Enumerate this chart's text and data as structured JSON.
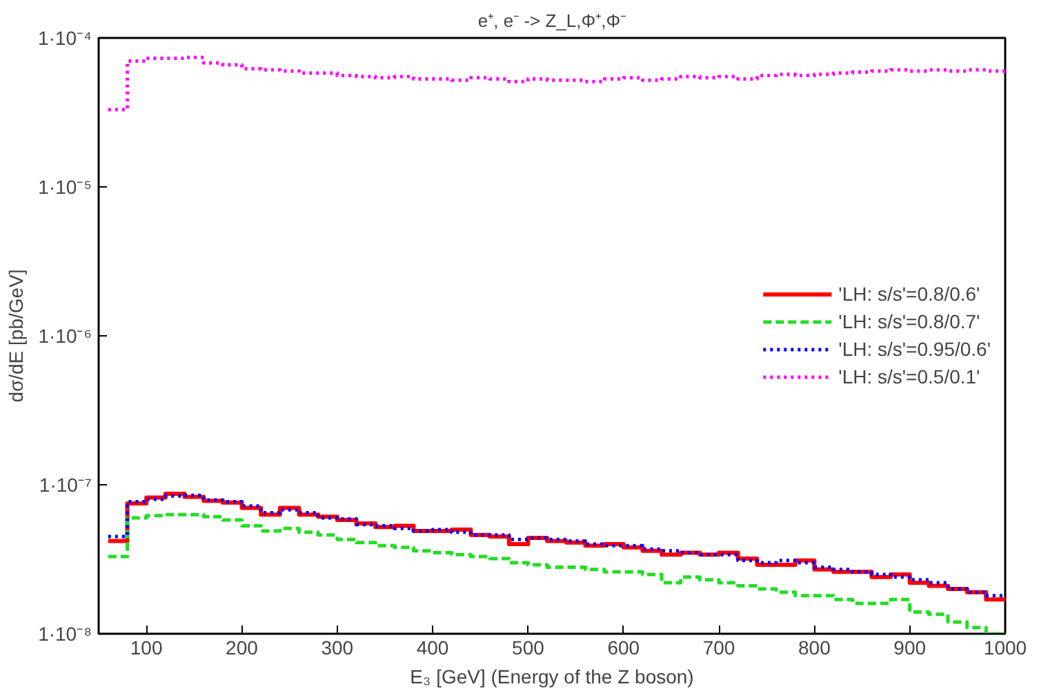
{
  "chart_data": {
    "type": "histogram",
    "title": "e⁺, e⁻ -> Z_L,Φ⁺,Φ⁻",
    "xlabel": "E₃ [GeV] (Energy of the Z boson)",
    "ylabel": "dσ/dE [pb/GeV]",
    "bins": [
      60,
      80,
      100,
      120,
      140,
      160,
      180,
      200,
      220,
      240,
      260,
      280,
      300,
      320,
      340,
      360,
      380,
      400,
      420,
      440,
      460,
      480,
      500,
      520,
      540,
      560,
      580,
      600,
      620,
      640,
      660,
      680,
      700,
      720,
      740,
      760,
      780,
      800,
      820,
      840,
      860,
      880,
      900,
      920,
      940,
      960,
      980,
      1000
    ],
    "series": [
      {
        "name": "'LH: s/s'=0.8/0.6'",
        "color": "#ff0000",
        "line_style": "solid",
        "values": [
          4.2e-08,
          7.5e-08,
          8.2e-08,
          8.7e-08,
          8.3e-08,
          7.8e-08,
          7.6e-08,
          7e-08,
          6.3e-08,
          7e-08,
          6.3e-08,
          6.1e-08,
          5.8e-08,
          5.5e-08,
          5.2e-08,
          5.3e-08,
          4.9e-08,
          4.9e-08,
          5e-08,
          4.6e-08,
          4.5e-08,
          4e-08,
          4.4e-08,
          4.2e-08,
          4.1e-08,
          3.9e-08,
          4e-08,
          3.8e-08,
          3.6e-08,
          3.4e-08,
          3.5e-08,
          3.4e-08,
          3.5e-08,
          3.2e-08,
          2.9e-08,
          2.9e-08,
          3.1e-08,
          2.7e-08,
          2.6e-08,
          2.6e-08,
          2.4e-08,
          2.5e-08,
          2.2e-08,
          2.1e-08,
          2e-08,
          1.9e-08,
          1.7e-08
        ]
      },
      {
        "name": "'LH: s/s'=0.8/0.7'",
        "color": "#22dd22",
        "line_style": "dashed",
        "values": [
          3.3e-08,
          6e-08,
          6.2e-08,
          6.3e-08,
          6.3e-08,
          6.1e-08,
          5.8e-08,
          5.3e-08,
          4.9e-08,
          5.1e-08,
          4.8e-08,
          4.6e-08,
          4.3e-08,
          4.1e-08,
          3.9e-08,
          3.8e-08,
          3.6e-08,
          3.5e-08,
          3.4e-08,
          3.3e-08,
          3.2e-08,
          3e-08,
          2.9e-08,
          2.8e-08,
          2.8e-08,
          2.7e-08,
          2.6e-08,
          2.6e-08,
          2.5e-08,
          2.2e-08,
          2.4e-08,
          2.3e-08,
          2.2e-08,
          2.1e-08,
          2e-08,
          1.9e-08,
          1.8e-08,
          1.8e-08,
          1.7e-08,
          1.6e-08,
          1.6e-08,
          1.7e-08,
          1.4e-08,
          1.35e-08,
          1.2e-08,
          1.1e-08,
          1e-08
        ]
      },
      {
        "name": "'LH: s/s'=0.95/0.6'",
        "color": "#0000ff",
        "line_style": "dotted",
        "values": [
          4.5e-08,
          7.7e-08,
          8e-08,
          8.4e-08,
          8.5e-08,
          7.9e-08,
          7.7e-08,
          7.2e-08,
          6.5e-08,
          6.8e-08,
          6.5e-08,
          6e-08,
          5.9e-08,
          5.4e-08,
          5.3e-08,
          5.1e-08,
          4.9e-08,
          5e-08,
          4.8e-08,
          4.6e-08,
          4.6e-08,
          4.3e-08,
          4.4e-08,
          4.3e-08,
          4.2e-08,
          4e-08,
          3.9e-08,
          3.9e-08,
          3.7e-08,
          3.6e-08,
          3.5e-08,
          3.4e-08,
          3.4e-08,
          3.1e-08,
          3e-08,
          3.1e-08,
          3e-08,
          2.8e-08,
          2.7e-08,
          2.6e-08,
          2.5e-08,
          2.4e-08,
          2.3e-08,
          2.2e-08,
          2e-08,
          1.9e-08,
          1.8e-08
        ]
      },
      {
        "name": "'LH: s/s'=0.5/0.1'",
        "color": "#ff00ff",
        "line_style": "dotted",
        "values": [
          3.3e-05,
          7e-05,
          7.3e-05,
          7.3e-05,
          7.4e-05,
          6.8e-05,
          6.6e-05,
          6.2e-05,
          6.1e-05,
          6e-05,
          5.8e-05,
          5.8e-05,
          5.6e-05,
          5.5e-05,
          5.4e-05,
          5.5e-05,
          5.3e-05,
          5.3e-05,
          5.2e-05,
          5.4e-05,
          5.3e-05,
          5.1e-05,
          5.3e-05,
          5.2e-05,
          5.2e-05,
          5.1e-05,
          5.3e-05,
          5.4e-05,
          5.2e-05,
          5.3e-05,
          5.5e-05,
          5.4e-05,
          5.5e-05,
          5.3e-05,
          5.6e-05,
          5.7e-05,
          5.6e-05,
          5.7e-05,
          5.8e-05,
          5.9e-05,
          6e-05,
          6.1e-05,
          6e-05,
          6.1e-05,
          6e-05,
          6.1e-05,
          6e-05
        ]
      }
    ],
    "xlim": [
      50,
      1000
    ],
    "xticks": [
      100,
      200,
      300,
      400,
      500,
      600,
      700,
      800,
      900,
      1000
    ],
    "ylim": [
      1e-08,
      0.0001
    ],
    "log": true,
    "yticks": [
      {
        "value": 1e-08,
        "label": "1·10⁻⁸"
      },
      {
        "value": 1e-07,
        "label": "1·10⁻⁷"
      },
      {
        "value": 1e-06,
        "label": "1·10⁻⁶"
      },
      {
        "value": 1e-05,
        "label": "1·10⁻⁵"
      },
      {
        "value": 0.0001,
        "label": "1·10⁻⁴"
      }
    ],
    "grid": false,
    "legend": "right"
  }
}
